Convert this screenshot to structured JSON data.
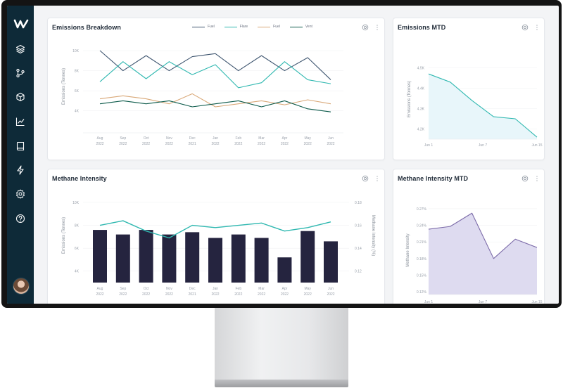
{
  "colors": {
    "sidebar": "#0e2a38",
    "flare": "#2fb8b0",
    "fuel": "#d9a878",
    "vent": "#0c5a4a",
    "fuel_dark": "#3f5670",
    "bar": "#25243f",
    "mtd_line": "#2fb8b0",
    "mtd_fill": "#e8f6fa",
    "intensity_line": "#7b6aa8",
    "intensity_fill": "#dedbf0"
  },
  "sidebar": {
    "items": [
      {
        "icon": "logo-icon"
      },
      {
        "icon": "layers-icon"
      },
      {
        "icon": "git-branch-icon"
      },
      {
        "icon": "cube-icon"
      },
      {
        "icon": "trend-chart-icon"
      },
      {
        "icon": "book-icon"
      },
      {
        "icon": "bolt-icon"
      },
      {
        "icon": "settings-icon"
      },
      {
        "icon": "help-icon"
      }
    ]
  },
  "emissions_breakdown": {
    "title": "Emissions Breakdown",
    "legend": [
      {
        "name": "Fuel",
        "color": "#3f5670"
      },
      {
        "name": "Flare",
        "color": "#2fb8b0"
      },
      {
        "name": "Fuel",
        "color": "#d9a878"
      },
      {
        "name": "Vent",
        "color": "#0c5a4a"
      }
    ]
  },
  "emissions_mtd": {
    "title": "Emissions MTD"
  },
  "methane_intensity": {
    "title": "Methane Intensity"
  },
  "methane_intensity_mtd": {
    "title": "Methane Intensity MTD"
  },
  "chart_data": [
    {
      "type": "line",
      "title": "Emissions Breakdown",
      "ylabel": "Emissions (Tonnes)",
      "ylim": [
        3000,
        10000
      ],
      "yticks": [
        "10K",
        "8K",
        "6K",
        "4K"
      ],
      "categories": [
        [
          "Aug",
          "2022"
        ],
        [
          "Sep",
          "2022"
        ],
        [
          "Oct",
          "2022"
        ],
        [
          "Nov",
          "2022"
        ],
        [
          "Dec",
          "2021"
        ],
        [
          "Jan",
          "2022"
        ],
        [
          "Feb",
          "2022"
        ],
        [
          "Mar",
          "2022"
        ],
        [
          "Apr",
          "2022"
        ],
        [
          "May",
          "2022"
        ],
        [
          "Jun",
          "2022"
        ]
      ],
      "series": [
        {
          "name": "Fuel",
          "color": "#3f5670",
          "values": [
            10000,
            8000,
            9500,
            8000,
            9400,
            9700,
            8000,
            9500,
            8000,
            9300,
            7100
          ]
        },
        {
          "name": "Flare",
          "color": "#2fb8b0",
          "values": [
            6900,
            8900,
            7200,
            8900,
            7600,
            8600,
            6300,
            6800,
            8900,
            7100,
            6700
          ]
        },
        {
          "name": "Fuel",
          "color": "#d9a878",
          "values": [
            5200,
            5500,
            5200,
            4700,
            5700,
            4400,
            4700,
            5000,
            4600,
            5100,
            4700
          ]
        },
        {
          "name": "Vent",
          "color": "#0c5a4a",
          "values": [
            4700,
            5000,
            4700,
            5000,
            4400,
            4700,
            5000,
            4400,
            5000,
            4200,
            3900
          ]
        }
      ]
    },
    {
      "type": "area",
      "title": "Emissions MTD",
      "ylabel": "Emissions (Tonnes)",
      "ylim": [
        4.15,
        4.55
      ],
      "yticks": [
        "4.5K",
        "4.4K",
        "4.3K",
        "4.2K"
      ],
      "ytick_values": [
        4.5,
        4.4,
        4.3,
        4.2
      ],
      "xticks": [
        "Jun 1",
        "Jun 7",
        "Jun 15"
      ],
      "values": [
        4.47,
        4.43,
        4.34,
        4.26,
        4.25,
        4.16
      ]
    },
    {
      "type": "bar",
      "title": "Methane Intensity",
      "ylabel": "Emissions (Tonnes)",
      "y2label": "Methane Intensity (%)",
      "ylim": [
        3000,
        10000
      ],
      "yticks": [
        "10K",
        "8K",
        "6K",
        "4K"
      ],
      "y2ticks": [
        "0.18",
        "0.16",
        "0.14",
        "0.12"
      ],
      "y2lim": [
        0.11,
        0.18
      ],
      "categories": [
        [
          "Aug",
          "2022"
        ],
        [
          "Sep",
          "2022"
        ],
        [
          "Oct",
          "2022"
        ],
        [
          "Nov",
          "2022"
        ],
        [
          "Dec",
          "2021"
        ],
        [
          "Jan",
          "2022"
        ],
        [
          "Feb",
          "2022"
        ],
        [
          "Mar",
          "2022"
        ],
        [
          "Apr",
          "2022"
        ],
        [
          "May",
          "2022"
        ],
        [
          "Jun",
          "2022"
        ]
      ],
      "bar_values": [
        7600,
        7200,
        7600,
        7200,
        7400,
        6900,
        7200,
        6900,
        5200,
        7500,
        6600
      ],
      "line_values": [
        0.16,
        0.164,
        0.155,
        0.149,
        0.16,
        0.158,
        0.16,
        0.162,
        0.155,
        0.158,
        0.163
      ]
    },
    {
      "type": "area",
      "title": "Methane Intensity MTD",
      "ylabel": "Methane Intensity",
      "ylim": [
        0.115,
        0.275
      ],
      "yticks": [
        "0.27%",
        "0.24%",
        "0.21%",
        "0.18%",
        "0.15%",
        "0.12%"
      ],
      "ytick_values": [
        0.27,
        0.24,
        0.21,
        0.18,
        0.15,
        0.12
      ],
      "xticks": [
        "Jun 1",
        "Jun 7",
        "Jun 15"
      ],
      "values": [
        0.233,
        0.238,
        0.262,
        0.18,
        0.215,
        0.2
      ]
    }
  ]
}
